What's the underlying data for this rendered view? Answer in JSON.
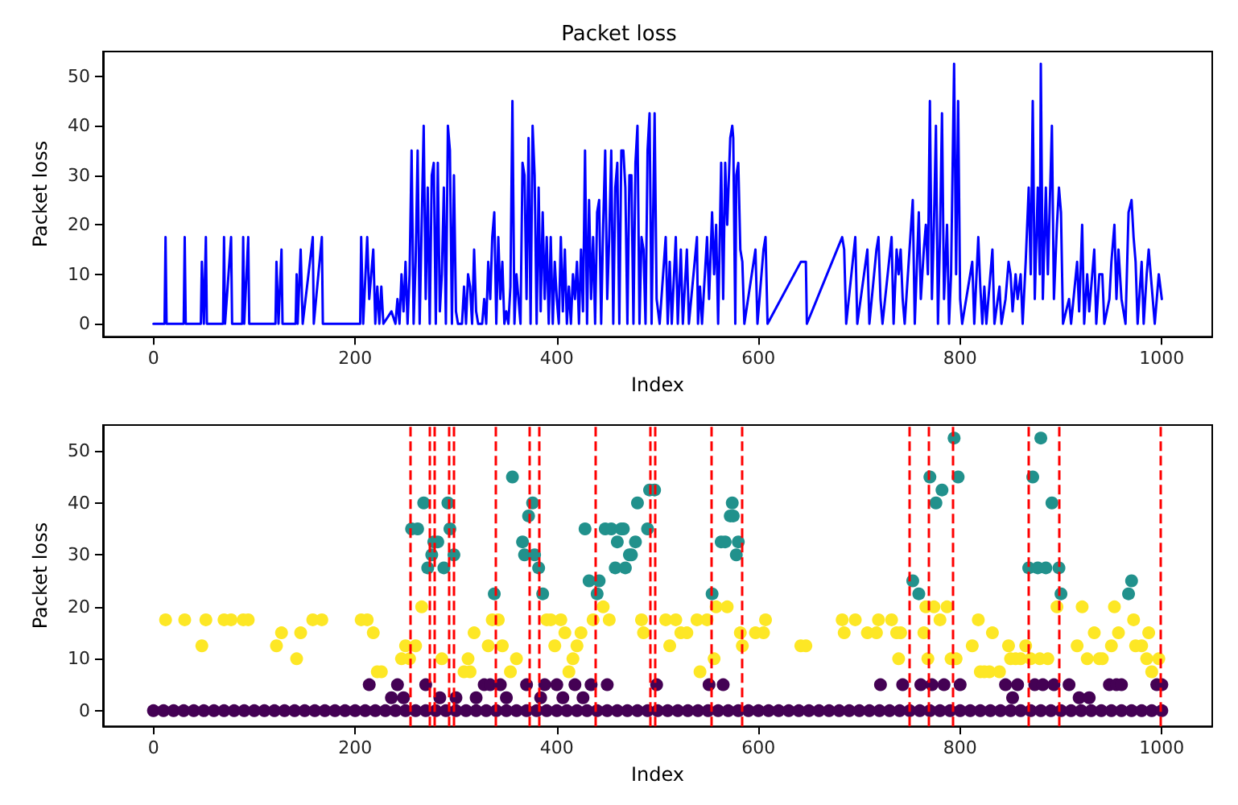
{
  "chart_data": [
    {
      "type": "line",
      "title": "Packet loss",
      "xlabel": "Index",
      "ylabel": "Packet loss",
      "xlim": [
        -50,
        1050
      ],
      "ylim": [
        -2.6,
        55
      ],
      "xticks": [
        0,
        200,
        400,
        600,
        800,
        1000
      ],
      "yticks": [
        0,
        10,
        20,
        30,
        40,
        50
      ],
      "grid": false,
      "marker": "none",
      "line_style": "solid",
      "series": [
        {
          "color": "#0000ff",
          "x": [
            0,
            11,
            12,
            13,
            30,
            31,
            32,
            47,
            48,
            50,
            52,
            53,
            69,
            70,
            71,
            77,
            78,
            88,
            89,
            90,
            94,
            95,
            121,
            122,
            124,
            127,
            128,
            141,
            142,
            143,
            146,
            148,
            158,
            159,
            167,
            168,
            205,
            206,
            208,
            212,
            214,
            218,
            220,
            222,
            224,
            226,
            228,
            236,
            240,
            242,
            244,
            246,
            248,
            250,
            252,
            254,
            256,
            258,
            260,
            262,
            264,
            266,
            268,
            270,
            272,
            274,
            276,
            278,
            280,
            282,
            284,
            286,
            288,
            290,
            292,
            294,
            296,
            298,
            300,
            302,
            306,
            308,
            310,
            312,
            314,
            316,
            318,
            320,
            322,
            326,
            328,
            330,
            332,
            334,
            336,
            338,
            340,
            342,
            344,
            346,
            348,
            350,
            352,
            354,
            356,
            358,
            360,
            364,
            366,
            368,
            370,
            372,
            374,
            376,
            378,
            380,
            382,
            384,
            386,
            388,
            390,
            392,
            394,
            396,
            398,
            400,
            402,
            404,
            406,
            408,
            410,
            412,
            414,
            416,
            418,
            420,
            422,
            424,
            426,
            428,
            430,
            432,
            434,
            436,
            438,
            440,
            442,
            444,
            446,
            448,
            450,
            452,
            454,
            456,
            458,
            460,
            462,
            464,
            466,
            468,
            470,
            472,
            474,
            476,
            478,
            480,
            482,
            484,
            486,
            488,
            490,
            492,
            494,
            497,
            499,
            502,
            508,
            510,
            512,
            514,
            518,
            520,
            523,
            525,
            529,
            531,
            539,
            540,
            542,
            544,
            549,
            551,
            554,
            556,
            558,
            560,
            563,
            565,
            567,
            569,
            572,
            574,
            575,
            577,
            578,
            580,
            582,
            584,
            586,
            597,
            599,
            605,
            607,
            609,
            642,
            647,
            648,
            683,
            685,
            687,
            696,
            698,
            708,
            710,
            717,
            719,
            721,
            723,
            732,
            734,
            737,
            739,
            741,
            743,
            745,
            753,
            755,
            759,
            761,
            764,
            766,
            768,
            770,
            772,
            774,
            776,
            778,
            780,
            782,
            784,
            787,
            789,
            791,
            794,
            796,
            798,
            800,
            802,
            812,
            814,
            818,
            820,
            822,
            824,
            826,
            829,
            832,
            834,
            839,
            841,
            845,
            848,
            850,
            852,
            855,
            857,
            860,
            862,
            865,
            868,
            870,
            872,
            874,
            877,
            879,
            880,
            882,
            885,
            887,
            891,
            893,
            896,
            898,
            900,
            902,
            908,
            910,
            916,
            918,
            921,
            923,
            926,
            928,
            933,
            935,
            938,
            941,
            943,
            948,
            950,
            953,
            955,
            957,
            960,
            964,
            967,
            970,
            972,
            974,
            976,
            980,
            982,
            985,
            987,
            990,
            993,
            995,
            997,
            1000
          ],
          "values": [
            0,
            0,
            17.5,
            0,
            0,
            17.5,
            0,
            0,
            12.5,
            0,
            17.5,
            0,
            0,
            17.5,
            0,
            17.5,
            0,
            0,
            17.5,
            0,
            17.5,
            0,
            0,
            12.5,
            0,
            15,
            0,
            0,
            10,
            0,
            15,
            0,
            17.5,
            0,
            17.5,
            0,
            0,
            17.5,
            0,
            17.5,
            5,
            15,
            0,
            7.5,
            0,
            7.5,
            0,
            2.5,
            0,
            5,
            0,
            10,
            2.5,
            12.5,
            0,
            10,
            35,
            0,
            12.5,
            35,
            0,
            20,
            40,
            5,
            27.5,
            0,
            30,
            32.5,
            0,
            32.5,
            2.5,
            10,
            27.5,
            0,
            40,
            35,
            0,
            30,
            2.5,
            0,
            0,
            7.5,
            0,
            10,
            7.5,
            0,
            15,
            2.5,
            0,
            0,
            5,
            0,
            12.5,
            5,
            17.5,
            22.5,
            0,
            17.5,
            5,
            12.5,
            0,
            2.5,
            0,
            7.5,
            45,
            0,
            10,
            0,
            32.5,
            30,
            5,
            37.5,
            0,
            40,
            30,
            0,
            27.5,
            2.5,
            22.5,
            5,
            17.5,
            0,
            17.5,
            0,
            12.5,
            5,
            0,
            17.5,
            2.5,
            15,
            0,
            7.5,
            0,
            10,
            5,
            12.5,
            0,
            15,
            2.5,
            35,
            0,
            25,
            5,
            17.5,
            0,
            22.5,
            25,
            0,
            20,
            35,
            5,
            17.5,
            35,
            0,
            27.5,
            32.5,
            0,
            35,
            35,
            27.5,
            0,
            30,
            30,
            0,
            32.5,
            40,
            0,
            17.5,
            15,
            0,
            35,
            42.5,
            0,
            42.5,
            5,
            0,
            17.5,
            0,
            12.5,
            0,
            17.5,
            0,
            15,
            0,
            15,
            0,
            17.5,
            0,
            7.5,
            0,
            17.5,
            5,
            22.5,
            10,
            20,
            0,
            32.5,
            5,
            32.5,
            20,
            37.5,
            40,
            37.5,
            0,
            30,
            32.5,
            15,
            12.5,
            0,
            15,
            0,
            15,
            17.5,
            0,
            12.5,
            12.5,
            0,
            17.5,
            15,
            0,
            17.5,
            0,
            15,
            0,
            15,
            17.5,
            5,
            0,
            17.5,
            0,
            15,
            10,
            15,
            5,
            0,
            25,
            0,
            22.5,
            5,
            15,
            20,
            10,
            45,
            5,
            20,
            40,
            0,
            17.5,
            42.5,
            5,
            20,
            0,
            10,
            52.5,
            10,
            45,
            5,
            0,
            12.5,
            0,
            17.5,
            7.5,
            0,
            7.5,
            0,
            7.5,
            15,
            0,
            7.5,
            0,
            5,
            12.5,
            10,
            2.5,
            10,
            5,
            10,
            0,
            12.5,
            27.5,
            10,
            45,
            5,
            27.5,
            10,
            52.5,
            5,
            27.5,
            10,
            40,
            5,
            20,
            27.5,
            22.5,
            0,
            5,
            0,
            12.5,
            2.5,
            20,
            0,
            10,
            2.5,
            15,
            0,
            10,
            10,
            0,
            5,
            12.5,
            20,
            5,
            15,
            5,
            0,
            22.5,
            25,
            17.5,
            12.5,
            0,
            12.5,
            0,
            10,
            15,
            7.5,
            0,
            5,
            10,
            5
          ]
        }
      ]
    },
    {
      "type": "scatter",
      "xlabel": "Index",
      "ylabel": "Packet loss",
      "xlim": [
        -50,
        1050
      ],
      "ylim": [
        -3,
        55
      ],
      "xticks": [
        0,
        200,
        400,
        600,
        800,
        1000
      ],
      "yticks": [
        0,
        10,
        20,
        30,
        40,
        50
      ],
      "grid": false,
      "marker": "circle",
      "series": [
        {
          "color": "#440154",
          "x": [
            0,
            10,
            20,
            30,
            40,
            50,
            60,
            70,
            80,
            90,
            100,
            110,
            120,
            130,
            140,
            150,
            160,
            170,
            180,
            190,
            200,
            210,
            220,
            230,
            240,
            250,
            260,
            270,
            280,
            290,
            300,
            310,
            320,
            330,
            340,
            350,
            360,
            370,
            380,
            390,
            400,
            410,
            420,
            430,
            440,
            450,
            460,
            470,
            480,
            490,
            500,
            510,
            520,
            530,
            540,
            550,
            560,
            570,
            580,
            590,
            600,
            610,
            620,
            630,
            640,
            650,
            660,
            670,
            680,
            690,
            700,
            710,
            720,
            730,
            740,
            750,
            760,
            770,
            780,
            790,
            800,
            810,
            820,
            830,
            840,
            850,
            860,
            870,
            880,
            890,
            900,
            910,
            920,
            930,
            940,
            950,
            960,
            970,
            980,
            990,
            1000,
            214,
            236,
            242,
            248,
            270,
            284,
            300,
            320,
            328,
            334,
            344,
            350,
            370,
            384,
            388,
            400,
            406,
            418,
            426,
            434,
            450,
            499,
            551,
            565,
            721,
            743,
            761,
            772,
            784,
            800,
            845,
            852,
            857,
            874,
            882,
            893,
            908,
            918,
            928,
            948,
            955,
            960,
            995,
            1000
          ],
          "values": [
            0,
            0,
            0,
            0,
            0,
            0,
            0,
            0,
            0,
            0,
            0,
            0,
            0,
            0,
            0,
            0,
            0,
            0,
            0,
            0,
            0,
            0,
            0,
            0,
            0,
            0,
            0,
            0,
            0,
            0,
            0,
            0,
            0,
            0,
            0,
            0,
            0,
            0,
            0,
            0,
            0,
            0,
            0,
            0,
            0,
            0,
            0,
            0,
            0,
            0,
            0,
            0,
            0,
            0,
            0,
            0,
            0,
            0,
            0,
            0,
            0,
            0,
            0,
            0,
            0,
            0,
            0,
            0,
            0,
            0,
            0,
            0,
            0,
            0,
            0,
            0,
            0,
            0,
            0,
            0,
            0,
            0,
            0,
            0,
            0,
            0,
            0,
            0,
            0,
            0,
            0,
            0,
            0,
            0,
            0,
            0,
            0,
            0,
            0,
            0,
            0,
            5,
            2.5,
            5,
            2.5,
            5,
            2.5,
            2.5,
            2.5,
            5,
            5,
            5,
            2.5,
            5,
            2.5,
            5,
            5,
            2.5,
            5,
            2.5,
            5,
            5,
            5,
            5,
            5,
            5,
            5,
            5,
            5,
            5,
            5,
            5,
            2.5,
            5,
            5,
            5,
            5,
            5,
            2.5,
            2.5,
            5,
            5,
            5,
            5,
            5
          ]
        },
        {
          "color": "#fde725",
          "x": [
            12,
            31,
            48,
            52,
            70,
            77,
            89,
            94,
            122,
            127,
            142,
            146,
            158,
            167,
            206,
            212,
            218,
            222,
            226,
            246,
            250,
            254,
            260,
            266,
            286,
            308,
            312,
            314,
            318,
            332,
            336,
            342,
            346,
            354,
            360,
            390,
            394,
            398,
            404,
            408,
            412,
            416,
            420,
            424,
            436,
            446,
            452,
            484,
            486,
            508,
            512,
            518,
            523,
            529,
            539,
            542,
            549,
            556,
            558,
            569,
            582,
            584,
            597,
            605,
            607,
            642,
            647,
            683,
            685,
            696,
            708,
            717,
            719,
            732,
            737,
            739,
            741,
            764,
            766,
            768,
            774,
            780,
            787,
            791,
            796,
            812,
            818,
            820,
            824,
            829,
            832,
            839,
            848,
            850,
            855,
            860,
            865,
            870,
            879,
            887,
            896,
            916,
            921,
            926,
            933,
            938,
            941,
            950,
            953,
            957,
            972,
            974,
            980,
            985,
            987,
            990,
            997
          ],
          "values": [
            17.5,
            17.5,
            12.5,
            17.5,
            17.5,
            17.5,
            17.5,
            17.5,
            12.5,
            15,
            10,
            15,
            17.5,
            17.5,
            17.5,
            17.5,
            15,
            7.5,
            7.5,
            10,
            12.5,
            10,
            12.5,
            20,
            10,
            7.5,
            10,
            7.5,
            15,
            12.5,
            17.5,
            17.5,
            12.5,
            7.5,
            10,
            17.5,
            17.5,
            12.5,
            17.5,
            15,
            7.5,
            10,
            12.5,
            15,
            17.5,
            20,
            17.5,
            17.5,
            15,
            17.5,
            12.5,
            17.5,
            15,
            15,
            17.5,
            7.5,
            17.5,
            10,
            20,
            20,
            15,
            12.5,
            15,
            15,
            17.5,
            12.5,
            12.5,
            17.5,
            15,
            17.5,
            15,
            15,
            17.5,
            17.5,
            15,
            10,
            15,
            15,
            20,
            10,
            20,
            17.5,
            20,
            10,
            10,
            12.5,
            17.5,
            7.5,
            7.5,
            7.5,
            15,
            7.5,
            12.5,
            10,
            10,
            10,
            12.5,
            10,
            10,
            10,
            20,
            12.5,
            20,
            10,
            15,
            10,
            10,
            12.5,
            20,
            15,
            17.5,
            12.5,
            12.5,
            10,
            15,
            7.5,
            10
          ]
        },
        {
          "color": "#21918c",
          "x": [
            256,
            262,
            268,
            272,
            276,
            278,
            282,
            288,
            292,
            294,
            298,
            338,
            356,
            366,
            368,
            372,
            376,
            378,
            382,
            386,
            428,
            432,
            440,
            442,
            448,
            454,
            458,
            460,
            464,
            466,
            468,
            472,
            474,
            478,
            480,
            490,
            492,
            497,
            554,
            563,
            567,
            572,
            574,
            575,
            578,
            580,
            753,
            759,
            770,
            776,
            782,
            794,
            798,
            868,
            872,
            877,
            880,
            885,
            891,
            898,
            900,
            967,
            970
          ],
          "values": [
            35,
            35,
            40,
            27.5,
            30,
            32.5,
            32.5,
            27.5,
            40,
            35,
            30,
            22.5,
            45,
            32.5,
            30,
            37.5,
            40,
            30,
            27.5,
            22.5,
            35,
            25,
            22.5,
            25,
            35,
            35,
            27.5,
            32.5,
            35,
            35,
            27.5,
            30,
            30,
            32.5,
            40,
            35,
            42.5,
            42.5,
            22.5,
            32.5,
            32.5,
            37.5,
            40,
            37.5,
            30,
            32.5,
            25,
            22.5,
            45,
            40,
            42.5,
            52.5,
            45,
            27.5,
            45,
            27.5,
            52.5,
            27.5,
            40,
            27.5,
            22.5,
            22.5,
            25
          ]
        }
      ],
      "ref_lines": [
        {
          "axis": "x",
          "value": 254,
          "color": "#ff0000",
          "line_style": "dashed"
        },
        {
          "axis": "x",
          "value": 273,
          "color": "#ff0000",
          "line_style": "dashed"
        },
        {
          "axis": "x",
          "value": 278,
          "color": "#ff0000",
          "line_style": "dashed"
        },
        {
          "axis": "x",
          "value": 293,
          "color": "#ff0000",
          "line_style": "dashed"
        },
        {
          "axis": "x",
          "value": 298,
          "color": "#ff0000",
          "line_style": "dashed"
        },
        {
          "axis": "x",
          "value": 339,
          "color": "#ff0000",
          "line_style": "dashed"
        },
        {
          "axis": "x",
          "value": 373,
          "color": "#ff0000",
          "line_style": "dashed"
        },
        {
          "axis": "x",
          "value": 383,
          "color": "#ff0000",
          "line_style": "dashed"
        },
        {
          "axis": "x",
          "value": 438,
          "color": "#ff0000",
          "line_style": "dashed"
        },
        {
          "axis": "x",
          "value": 493,
          "color": "#ff0000",
          "line_style": "dashed"
        },
        {
          "axis": "x",
          "value": 498,
          "color": "#ff0000",
          "line_style": "dashed"
        },
        {
          "axis": "x",
          "value": 553,
          "color": "#ff0000",
          "line_style": "dashed"
        },
        {
          "axis": "x",
          "value": 583,
          "color": "#ff0000",
          "line_style": "dashed"
        },
        {
          "axis": "x",
          "value": 749,
          "color": "#ff0000",
          "line_style": "dashed"
        },
        {
          "axis": "x",
          "value": 769,
          "color": "#ff0000",
          "line_style": "dashed"
        },
        {
          "axis": "x",
          "value": 793,
          "color": "#ff0000",
          "line_style": "dashed"
        },
        {
          "axis": "x",
          "value": 868,
          "color": "#ff0000",
          "line_style": "dashed"
        },
        {
          "axis": "x",
          "value": 898,
          "color": "#ff0000",
          "line_style": "dashed"
        },
        {
          "axis": "x",
          "value": 999,
          "color": "#ff0000",
          "line_style": "dashed"
        }
      ]
    }
  ]
}
